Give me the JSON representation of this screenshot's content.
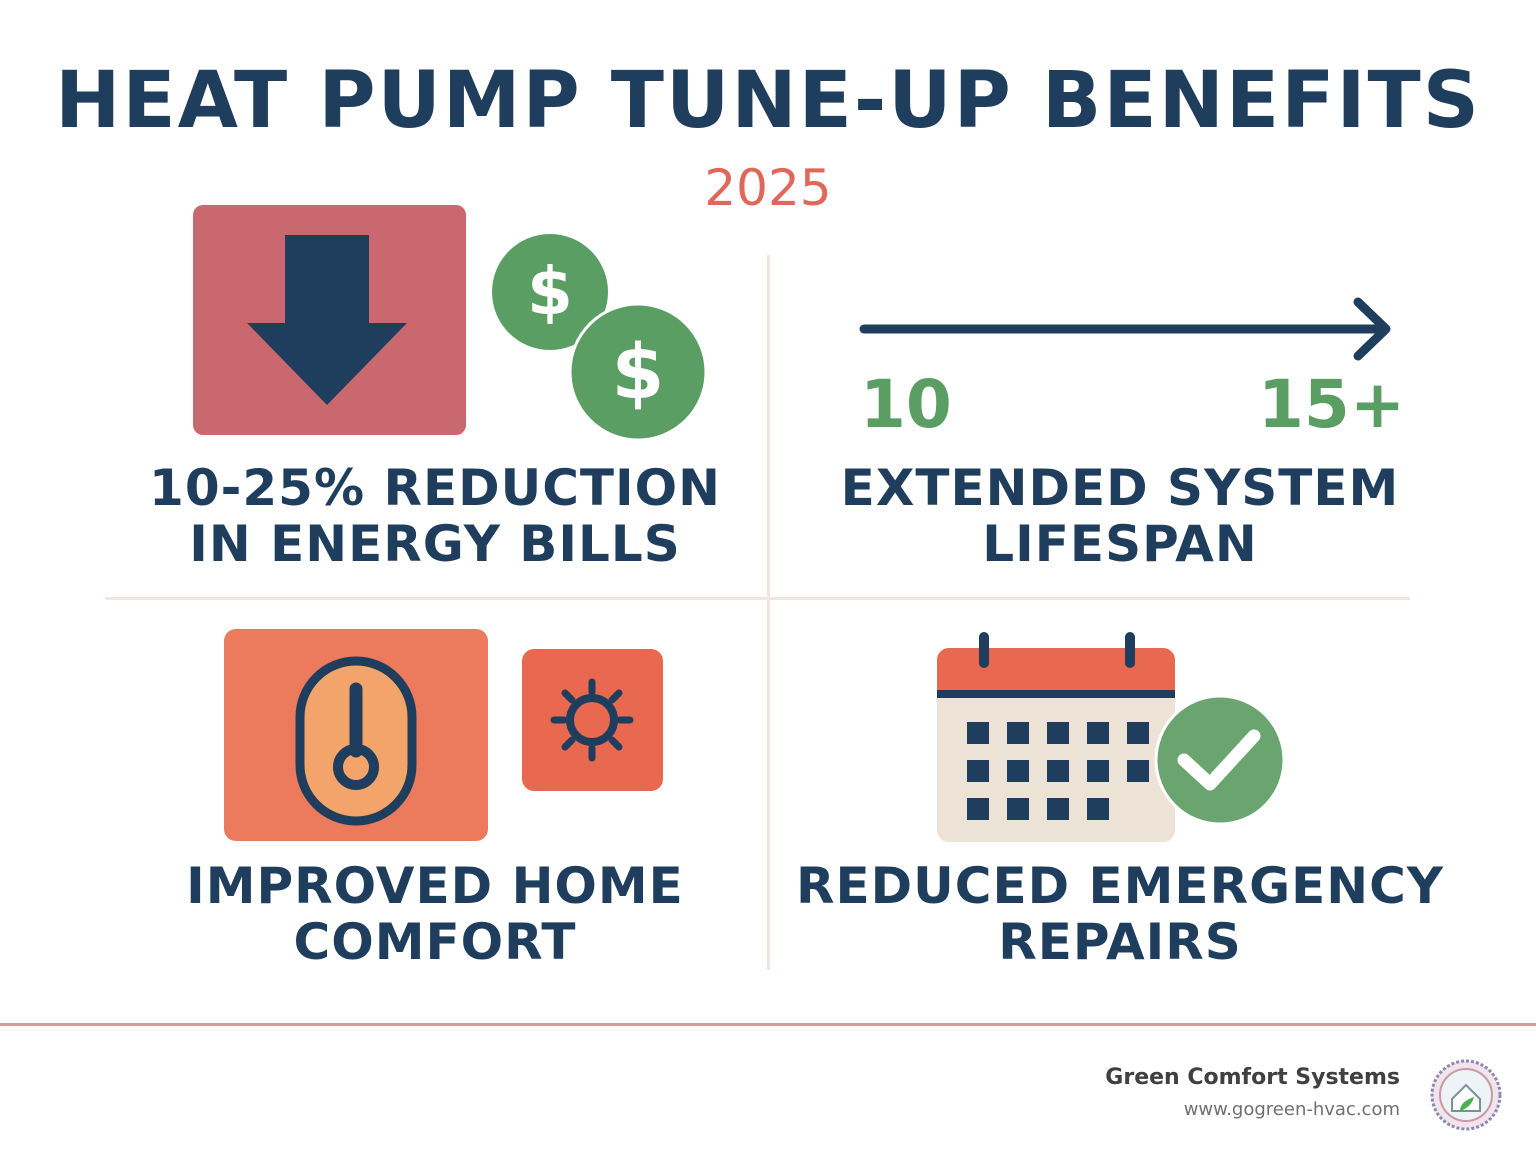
{
  "header": {
    "title": "HEAT PUMP TUNE-UP BENEFITS",
    "year": "2025"
  },
  "panels": {
    "energy": {
      "caption_line1": "10-25% REDUCTION",
      "caption_line2": "IN ENERGY BILLS",
      "icons": [
        "down-arrow-icon",
        "dollar-coin-icon"
      ]
    },
    "lifespan": {
      "caption_line1": "EXTENDED SYSTEM",
      "caption_line2": "LIFESPAN",
      "start_value": "10",
      "end_value": "15+",
      "icons": [
        "right-arrow-icon"
      ]
    },
    "comfort": {
      "caption_line1": "IMPROVED HOME",
      "caption_line2": "COMFORT",
      "icons": [
        "thermostat-icon",
        "sun-icon"
      ]
    },
    "repairs": {
      "caption_line1": "REDUCED EMERGENCY",
      "caption_line2": "REPAIRS",
      "icons": [
        "calendar-icon",
        "checkmark-icon"
      ]
    }
  },
  "footer": {
    "brand": "Green Comfort Systems",
    "url": "www.gogreen-hvac.com"
  },
  "colors": {
    "navy": "#1f3d5c",
    "coral": "#e0685a",
    "green": "#5a9e63",
    "rose": "#c9696f",
    "orange": "#ec7a5c"
  }
}
